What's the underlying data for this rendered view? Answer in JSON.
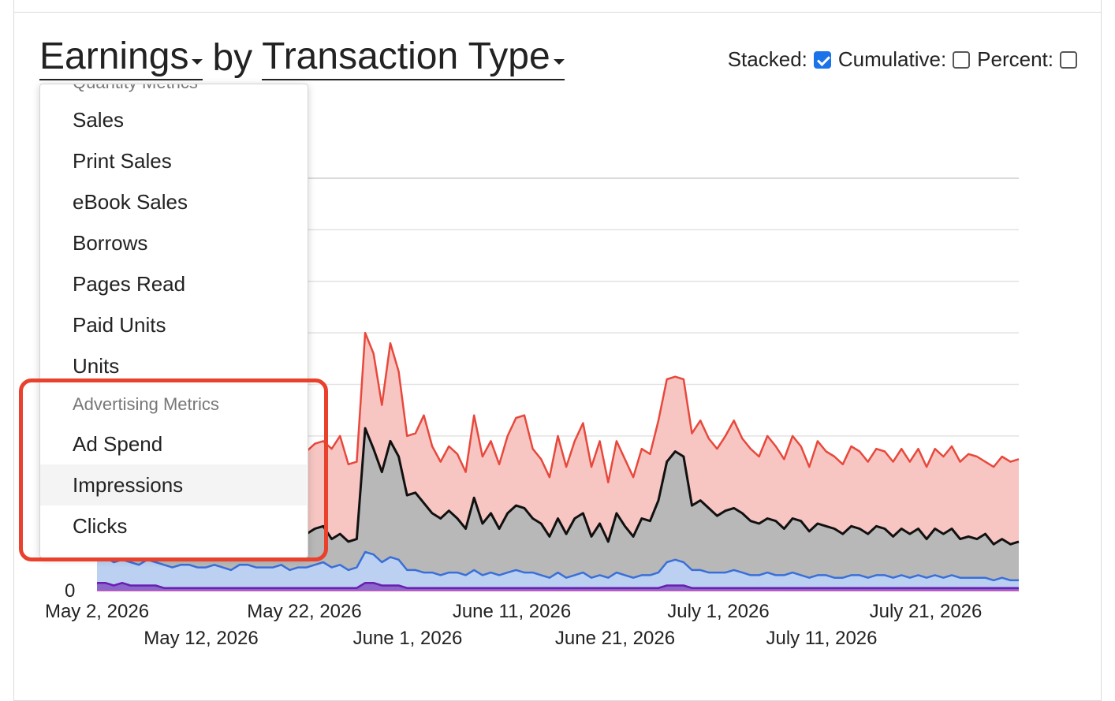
{
  "header": {
    "metric_label": "Earnings",
    "by_label": "by",
    "group_label": "Transaction Type"
  },
  "options": {
    "stacked_label": "Stacked:",
    "stacked": true,
    "cumulative_label": "Cumulative:",
    "cumulative": false,
    "percent_label": "Percent:",
    "percent": false
  },
  "menu": {
    "top_section_header": "Quantity Metrics",
    "items": [
      "Sales",
      "Print Sales",
      "eBook Sales",
      "Borrows",
      "Pages Read",
      "Paid Units",
      "Units"
    ],
    "ad_section_header": "Advertising Metrics",
    "ad_items": [
      "Ad Spend",
      "Impressions",
      "Clicks"
    ],
    "hovered_item": "Impressions"
  },
  "colors": {
    "red_series": "#e8483c",
    "red_fill": "#f7c6c2",
    "black_series": "#111111",
    "gray_fill": "#b8b8b8",
    "blue_series": "#3a6fd8",
    "blue_fill": "#bcd0f2",
    "purple_series": "#6a1fb0",
    "pink_series": "#e05ab8",
    "annotation": "#e8412c",
    "checkbox": "#1a73e8"
  },
  "chart_data": {
    "type": "area",
    "stacked": true,
    "ylabel_min": "0",
    "x_tick_labels": [
      "May 2, 2026",
      "May 12, 2026",
      "May 22, 2026",
      "June 1, 2026",
      "June 11, 2026",
      "June 21, 2026",
      "July 1, 2026",
      "July 11, 2026",
      "July 21, 2026"
    ],
    "series": [
      {
        "color_key": "red_series",
        "values": [
          50,
          52,
          48,
          55,
          51,
          49,
          56,
          53,
          50,
          47,
          58,
          54,
          51,
          49,
          52,
          50,
          48,
          55,
          57,
          53,
          50,
          52,
          60,
          48,
          52,
          54,
          57,
          58,
          55,
          60,
          49,
          50,
          100,
          92,
          72,
          96,
          85,
          60,
          61,
          68,
          56,
          50,
          56,
          53,
          46,
          68,
          52,
          58,
          49,
          60,
          67,
          68,
          55,
          51,
          44,
          60,
          48,
          58,
          65,
          48,
          58,
          42,
          58,
          51,
          44,
          55,
          53,
          66,
          82,
          83,
          82,
          61,
          66,
          59,
          55,
          60,
          66,
          59,
          55,
          52,
          60,
          56,
          51,
          60,
          56,
          48,
          58,
          54,
          52,
          49,
          56,
          54,
          50,
          55,
          54,
          50,
          55,
          50,
          55,
          48,
          55,
          52,
          56,
          50,
          53,
          52,
          50,
          48,
          52,
          50,
          51
        ]
      },
      {
        "color_key": "black_series",
        "values": [
          22,
          24,
          21,
          25,
          23,
          20,
          24,
          22,
          21,
          19,
          23,
          22,
          20,
          19,
          21,
          20,
          18,
          22,
          23,
          21,
          19,
          20,
          24,
          17,
          21,
          22,
          24,
          25,
          20,
          22,
          19,
          20,
          63,
          55,
          46,
          58,
          52,
          37,
          38,
          34,
          30,
          28,
          31,
          28,
          24,
          36,
          26,
          30,
          24,
          30,
          33,
          32,
          28,
          26,
          21,
          28,
          22,
          28,
          30,
          21,
          26,
          19,
          30,
          25,
          21,
          28,
          27,
          35,
          50,
          54,
          52,
          33,
          35,
          32,
          29,
          31,
          32,
          30,
          27,
          26,
          28,
          27,
          24,
          28,
          27,
          23,
          26,
          25,
          24,
          22,
          25,
          24,
          22,
          25,
          24,
          21,
          24,
          22,
          24,
          20,
          24,
          22,
          24,
          20,
          21,
          20,
          22,
          18,
          20,
          18,
          19
        ]
      },
      {
        "color_key": "blue_series",
        "values": [
          12,
          13,
          11,
          12,
          11,
          10,
          12,
          11,
          10,
          9,
          10,
          10,
          9,
          9,
          10,
          9,
          8,
          10,
          10,
          9,
          9,
          9,
          10,
          8,
          9,
          9,
          10,
          11,
          9,
          10,
          8,
          9,
          15,
          14,
          11,
          13,
          12,
          8,
          8,
          7,
          7,
          6,
          7,
          7,
          6,
          8,
          6,
          7,
          6,
          7,
          8,
          7,
          7,
          6,
          5,
          7,
          5,
          6,
          7,
          5,
          6,
          5,
          7,
          6,
          5,
          6,
          6,
          7,
          11,
          12,
          11,
          8,
          8,
          7,
          7,
          7,
          8,
          7,
          6,
          6,
          7,
          6,
          6,
          7,
          6,
          5,
          6,
          6,
          5,
          5,
          6,
          6,
          5,
          6,
          6,
          5,
          6,
          5,
          6,
          5,
          6,
          5,
          6,
          5,
          5,
          5,
          5,
          4,
          5,
          4,
          4
        ]
      },
      {
        "color_key": "purple_series",
        "values": [
          3,
          3,
          2,
          3,
          2,
          2,
          2,
          2,
          1,
          1,
          1,
          1,
          1,
          1,
          1,
          1,
          1,
          1,
          1,
          1,
          1,
          1,
          1,
          1,
          1,
          1,
          1,
          1,
          1,
          1,
          1,
          1,
          3,
          3,
          2,
          2,
          2,
          1,
          1,
          1,
          1,
          1,
          1,
          1,
          1,
          1,
          1,
          1,
          1,
          1,
          1,
          1,
          1,
          1,
          1,
          1,
          1,
          1,
          1,
          1,
          1,
          1,
          1,
          1,
          1,
          1,
          1,
          1,
          2,
          2,
          2,
          1,
          1,
          1,
          1,
          1,
          1,
          1,
          1,
          1,
          1,
          1,
          1,
          1,
          1,
          1,
          1,
          1,
          1,
          1,
          1,
          1,
          1,
          1,
          1,
          1,
          1,
          1,
          1,
          1,
          1,
          1,
          1,
          1,
          1,
          1,
          1,
          1,
          1,
          1,
          1
        ]
      }
    ]
  }
}
